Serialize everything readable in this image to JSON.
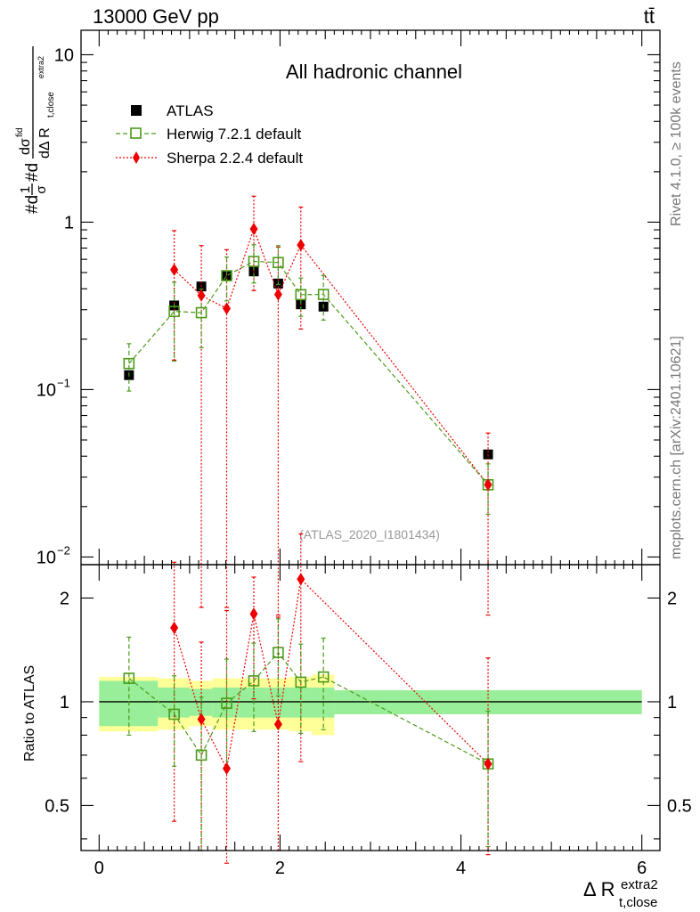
{
  "header": {
    "left": "13000 GeV pp",
    "right": "tt̄"
  },
  "main_panel": {
    "title": "All hadronic channel",
    "analysis_tag": "(ATLAS_2020_I1801434)",
    "ylabel_parts": {
      "prefix": "#d",
      "frac1_num": "1",
      "frac1_den": "σ",
      "mid": "#d",
      "frac2_num": "dσ",
      "frac2_num_sup": "fid",
      "frac2_den": "dΔ R",
      "frac2_den_sub": "t,close",
      "frac2_den_sup": "extra2"
    },
    "yticks": [
      {
        "value": 10,
        "label": "10"
      },
      {
        "value": 1,
        "label": "1"
      },
      {
        "value": 0.1,
        "base": "10",
        "exp": "−1"
      },
      {
        "value": 0.01,
        "base": "10",
        "exp": "−2"
      }
    ]
  },
  "ratio_panel": {
    "ylabel": "Ratio to ATLAS",
    "yticks": [
      {
        "value": 2,
        "label": "2"
      },
      {
        "value": 1,
        "label": "1"
      },
      {
        "value": 0.5,
        "label": "0.5"
      }
    ]
  },
  "xaxis": {
    "label_main": "Δ R",
    "label_sub": "t,close",
    "label_sup": "extra2",
    "ticks": [
      {
        "value": 0,
        "label": "0"
      },
      {
        "value": 2,
        "label": "2"
      },
      {
        "value": 4,
        "label": "4"
      },
      {
        "value": 6,
        "label": "6"
      }
    ]
  },
  "side_text": {
    "rivet": "Rivet 4.1.0, ≥ 100k events",
    "mcplots": "mcplots.cern.ch [arXiv:2401.10621]"
  },
  "colors": {
    "herwig": "#4c9a1a",
    "sherpa": "#ee0000",
    "data": "#000000",
    "band_inner": "#99ee99",
    "band_outer": "#ffff99",
    "side_text": "#777777"
  },
  "chart_data": {
    "type": "scatter",
    "title": "All hadronic channel",
    "xlabel": "Δ R t,close extra2",
    "ylabel": "1/σ dσfid / dΔR t,close extra2",
    "xlim": [
      -0.2,
      6.2
    ],
    "ylim": [
      0.009,
      14
    ],
    "yscale": "log",
    "ratio_ylim": [
      0.37,
      2.5
    ],
    "legend_position": "top-left",
    "bin_edges": [
      0,
      0.65,
      1.0,
      1.25,
      1.55,
      1.85,
      2.1,
      2.35,
      2.6,
      6.0
    ],
    "series": [
      {
        "name": "ATLAS",
        "marker": "square",
        "x": [
          0.33,
          0.83,
          1.13,
          1.41,
          1.71,
          1.98,
          2.23,
          2.48,
          4.3
        ],
        "y": [
          0.122,
          0.318,
          0.413,
          0.476,
          0.508,
          0.43,
          0.323,
          0.313,
          0.041
        ],
        "band_inner": [
          0.15,
          0.1,
          0.09,
          0.1,
          0.1,
          0.1,
          0.1,
          0.1,
          0.08
        ],
        "band_outer": [
          0.18,
          0.17,
          0.15,
          0.17,
          0.17,
          0.17,
          0.18,
          0.2,
          0.08
        ]
      },
      {
        "name": "Herwig 7.2.1 default",
        "marker": "open-square",
        "line": "dashed",
        "x": [
          0.33,
          0.83,
          1.13,
          1.41,
          1.71,
          1.98,
          2.23,
          2.48,
          4.3
        ],
        "y": [
          0.143,
          0.293,
          0.288,
          0.479,
          0.583,
          0.574,
          0.369,
          0.37,
          0.027
        ],
        "yerr": [
          0.045,
          0.145,
          0.11,
          0.14,
          0.15,
          0.15,
          0.095,
          0.11,
          0.009
        ],
        "ratio": [
          1.17,
          0.92,
          0.7,
          0.99,
          1.15,
          1.39,
          1.14,
          1.18,
          0.66
        ],
        "ratio_err": [
          0.37,
          0.27,
          0.33,
          0.34,
          0.33,
          0.35,
          0.33,
          0.35,
          0.28
        ]
      },
      {
        "name": "Sherpa 2.2.4 default",
        "marker": "diamond",
        "line": "dotted",
        "x": [
          0.83,
          1.13,
          1.41,
          1.71,
          1.98,
          2.23,
          4.3
        ],
        "y": [
          0.52,
          0.365,
          0.305,
          0.91,
          0.37,
          0.73,
          0.027
        ],
        "yerr_up": [
          0.37,
          0.36,
          0.38,
          0.52,
          0.34,
          0.5,
          0.028
        ],
        "yerr_down": [
          0.37,
          0.36,
          0.3,
          0.52,
          0.369,
          0.5,
          0.027
        ],
        "ratio": [
          1.64,
          0.89,
          0.64,
          1.8,
          0.86,
          2.27,
          0.66
        ],
        "ratio_err_up": [
          0.9,
          0.6,
          1.2,
          0.5,
          0.9,
          0.8,
          0.68
        ],
        "ratio_err_down": [
          1.19,
          0.52,
          0.3,
          0.78,
          0.49,
          1.6,
          0.3
        ]
      }
    ]
  }
}
